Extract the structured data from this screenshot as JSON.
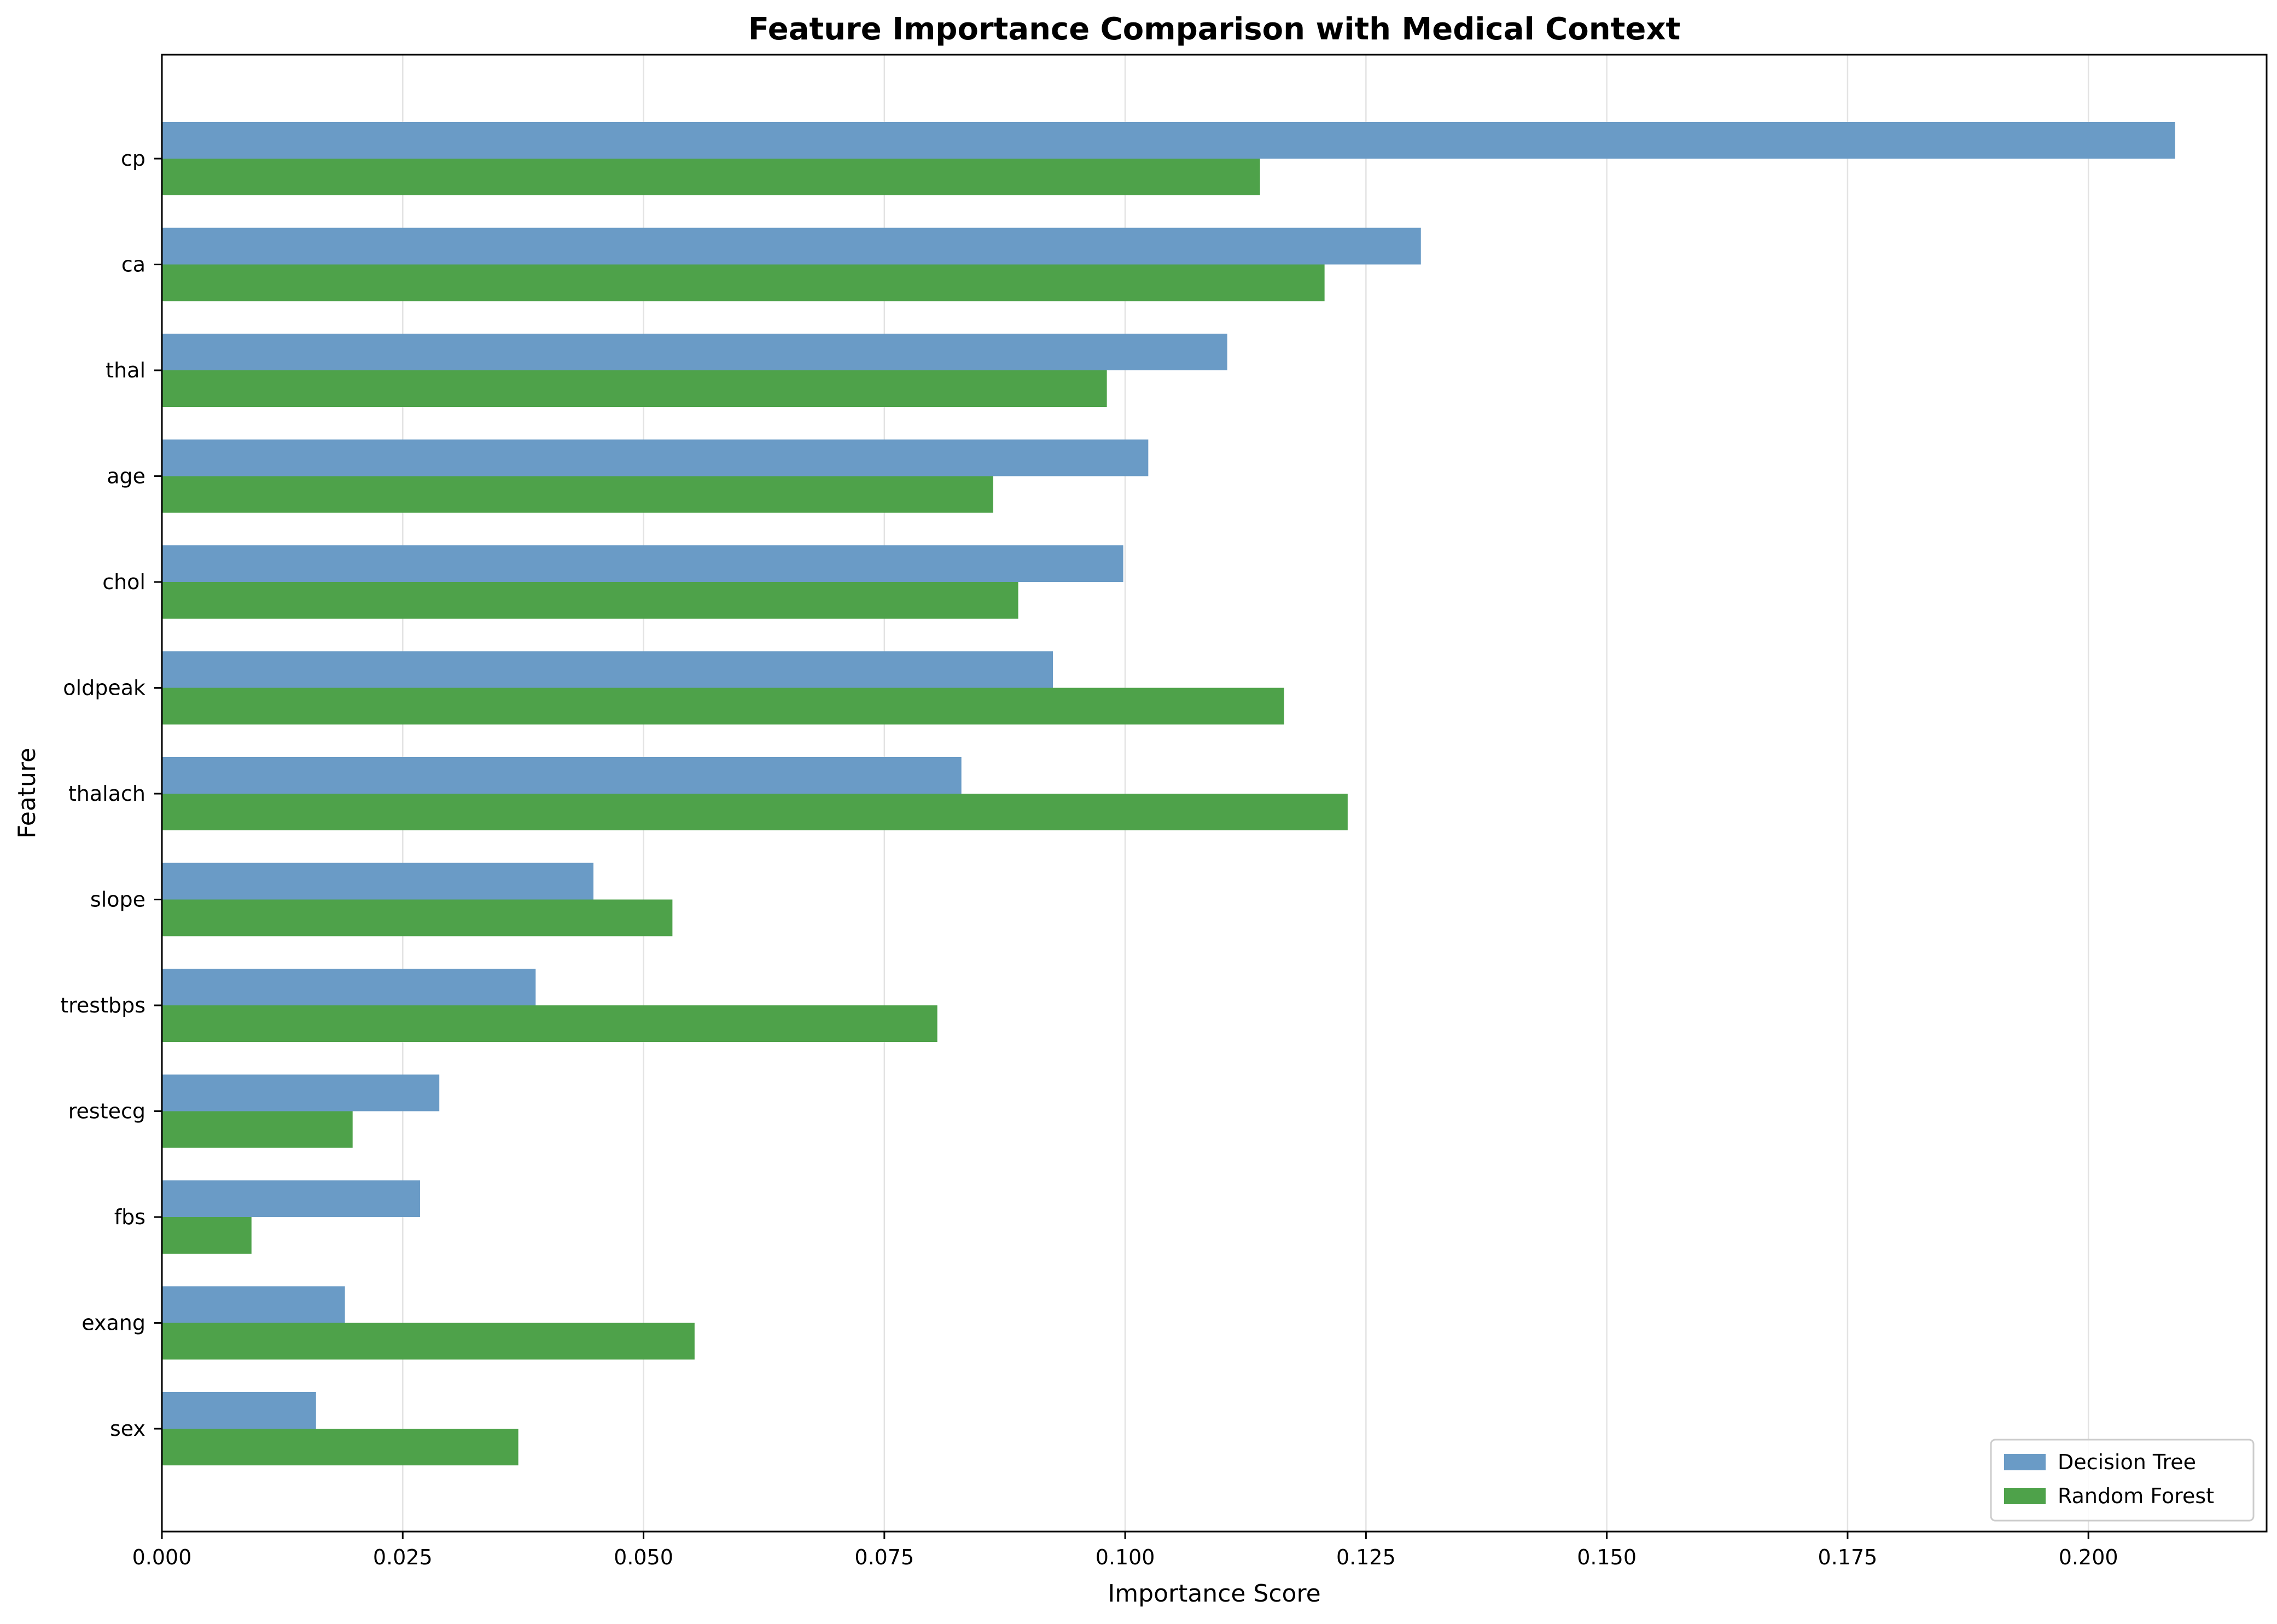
{
  "chart_data": {
    "type": "bar",
    "orientation": "horizontal",
    "title": "Feature Importance Comparison with Medical Context",
    "xlabel": "Importance Score",
    "ylabel": "Feature",
    "categories": [
      "cp",
      "ca",
      "thal",
      "age",
      "chol",
      "oldpeak",
      "thalach",
      "slope",
      "trestbps",
      "restecg",
      "fbs",
      "exang",
      "sex"
    ],
    "series": [
      {
        "name": "Decision Tree",
        "color": "#6a9bc6",
        "values": [
          0.209,
          0.1307,
          0.1106,
          0.1024,
          0.0998,
          0.0925,
          0.083,
          0.0448,
          0.0388,
          0.0288,
          0.0268,
          0.019,
          0.016
        ]
      },
      {
        "name": "Random Forest",
        "color": "#4ea24a",
        "values": [
          0.114,
          0.1207,
          0.0981,
          0.0863,
          0.0889,
          0.1165,
          0.1231,
          0.053,
          0.0805,
          0.0198,
          0.0093,
          0.0553,
          0.037
        ]
      }
    ],
    "xlim": [
      0,
      0.2185
    ],
    "xticks": [
      0.0,
      0.025,
      0.05,
      0.075,
      0.1,
      0.125,
      0.15,
      0.175,
      0.2
    ],
    "xtick_labels": [
      "0.000",
      "0.025",
      "0.050",
      "0.075",
      "0.100",
      "0.125",
      "0.150",
      "0.175",
      "0.200"
    ],
    "grid": "x-axis only",
    "legend_position": "lower right"
  }
}
